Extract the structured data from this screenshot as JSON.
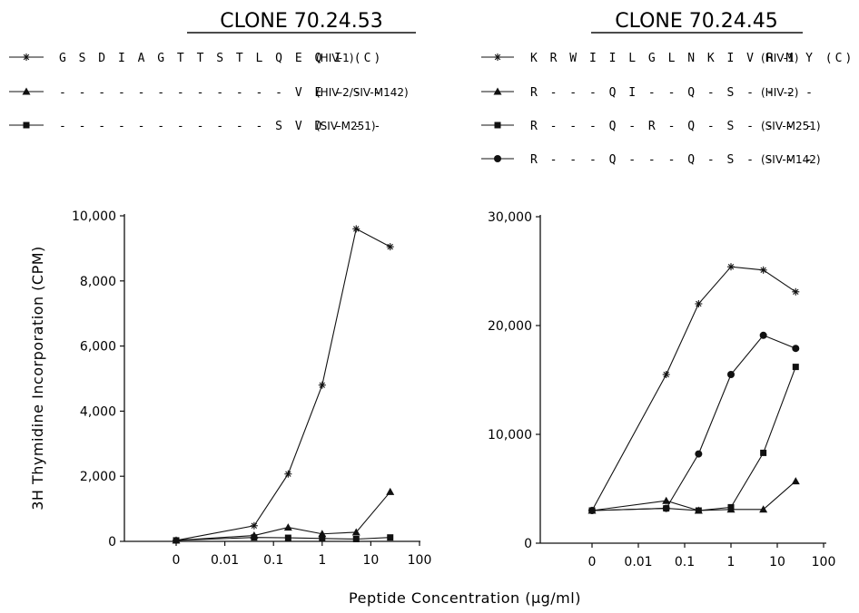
{
  "chart_data": [
    {
      "type": "line",
      "title": "CLONE 70.24.53",
      "ylabel": "3H Thymidine Incorporation (CPM)",
      "xlabel": "Peptide Concentration (µg/ml)",
      "x_scale": "log",
      "x_ticks": [
        "0",
        "0.01",
        "0.1",
        "1",
        "10",
        "100"
      ],
      "y_ticks": [
        "0",
        "2,000",
        "4,000",
        "6,000",
        "8,000",
        "10,000"
      ],
      "ylim": [
        0,
        10000
      ],
      "x": [
        "0",
        "0.04",
        "0.2",
        "1",
        "5",
        "25"
      ],
      "series": [
        {
          "marker": "star",
          "sequence": "G S D I A G T T S T L Q E Q I (C)",
          "name": "(HIV-1)",
          "values": [
            30,
            480,
            2070,
            4800,
            9600,
            9050
          ]
        },
        {
          "marker": "triangle",
          "sequence": "- - - - - - - - - - - - V E - - -",
          "name": "(HIV-2/SIV-M142)",
          "values": [
            30,
            180,
            430,
            230,
            280,
            1520
          ]
        },
        {
          "marker": "square",
          "sequence": "- - - - - - - - - - - S V D - - -",
          "name": "(SIV-M251)",
          "values": [
            30,
            120,
            110,
            90,
            70,
            120
          ]
        }
      ]
    },
    {
      "type": "line",
      "title": "CLONE 70.24.45",
      "x_scale": "log",
      "x_ticks": [
        "0",
        "0.01",
        "0.1",
        "1",
        "10",
        "100"
      ],
      "y_ticks": [
        "0",
        "10,000",
        "20,000",
        "30,000"
      ],
      "ylim": [
        0,
        30000
      ],
      "x": [
        "0",
        "0.04",
        "0.2",
        "1",
        "5",
        "25"
      ],
      "series": [
        {
          "marker": "star",
          "sequence": "K R W I I L G L N K I V R M Y (C)",
          "name": "(HIV-1)",
          "values": [
            3000,
            15500,
            22000,
            25400,
            25100,
            23100
          ]
        },
        {
          "marker": "triangle",
          "sequence": "R - - - Q I - - Q - S - - - -",
          "name": "(HIV-2)",
          "values": [
            3000,
            3900,
            3000,
            3100,
            3100,
            5700
          ]
        },
        {
          "marker": "square",
          "sequence": "R - - - Q - R - Q - S - - - -",
          "name": "(SIV-M251)",
          "values": [
            3000,
            3200,
            3000,
            3300,
            8300,
            16200
          ]
        },
        {
          "marker": "diamond",
          "sequence": "R - - - Q - - - Q - S - - - -",
          "name": "(SIV-M142)",
          "values": [
            3000,
            3200,
            8200,
            15500,
            19100,
            17900
          ]
        }
      ]
    }
  ]
}
